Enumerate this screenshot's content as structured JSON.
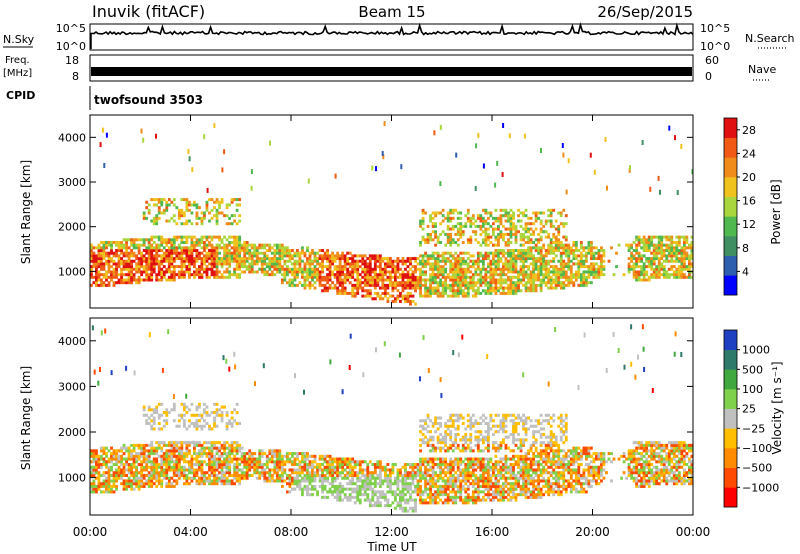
{
  "header": {
    "station": "Inuvik (fitACF)",
    "beam": "Beam 15",
    "date": "26/Sep/2015"
  },
  "top_panels": {
    "nsky_label": "N.Sky",
    "nsky_ticks": [
      "10^5",
      "10^0"
    ],
    "nsearch_label": "N.Search",
    "nsearch_ticks": [
      "10^5",
      "10^0"
    ],
    "freq_label_line1": "Freq.",
    "freq_label_line2": "[MHz]",
    "freq_ticks": [
      "18",
      "8"
    ],
    "nave_label": "Nave",
    "nave_ticks": [
      "60",
      "0"
    ],
    "cpid_label": "CPID",
    "cpid_value": "twofsound 3503"
  },
  "colors": {
    "power": [
      "#0000ff",
      "#2e5fae",
      "#3f8f63",
      "#4fb84f",
      "#a8d63c",
      "#f0c21e",
      "#f08c1a",
      "#f05a14",
      "#e01010"
    ],
    "velocity": [
      "#ff0000",
      "#ff4a00",
      "#ff8c00",
      "#ffbf00",
      "#c0c0c0",
      "#7fd04a",
      "#3fa83f",
      "#2e7a6a",
      "#1f40c0"
    ]
  },
  "chart_data": [
    {
      "type": "heatmap",
      "name": "power",
      "ylabel": "Slant Range [km]",
      "xlabel": "",
      "x_ticks": [
        "00:00",
        "04:00",
        "08:00",
        "12:00",
        "16:00",
        "20:00",
        "00:00"
      ],
      "y_ticks": [
        "1000",
        "2000",
        "3000",
        "4000"
      ],
      "ylim": [
        180,
        4500
      ],
      "colorbar_label": "Power [dB]",
      "colorbar_ticks": [
        "4",
        "8",
        "12",
        "16",
        "20",
        "24",
        "28"
      ],
      "value_range": [
        0,
        30
      ]
    },
    {
      "type": "heatmap",
      "name": "velocity",
      "ylabel": "Slant Range [km]",
      "xlabel": "Time UT",
      "x_ticks": [
        "00:00",
        "04:00",
        "08:00",
        "12:00",
        "16:00",
        "20:00",
        "00:00"
      ],
      "y_ticks": [
        "1000",
        "2000",
        "3000",
        "4000"
      ],
      "ylim": [
        180,
        4500
      ],
      "colorbar_label": "Velocity [m s⁻¹]",
      "colorbar_ticks": [
        "1000",
        "500",
        "100",
        "25",
        "−25",
        "−100",
        "−500",
        "−1000"
      ],
      "value_range": [
        -1000,
        1000
      ]
    }
  ]
}
